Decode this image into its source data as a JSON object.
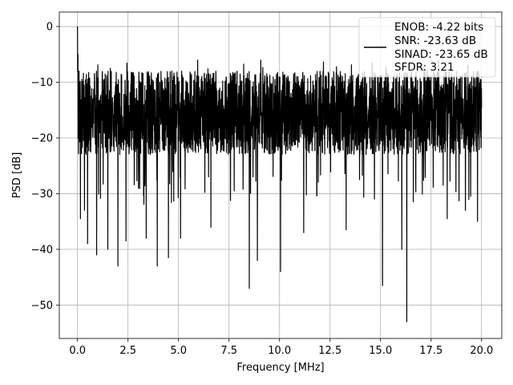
{
  "chart_data": {
    "type": "line",
    "title": "",
    "xlabel": "Frequency [MHz]",
    "ylabel": "PSD [dB]",
    "xlim": [
      -0.9,
      21.0
    ],
    "ylim": [
      -56.0,
      2.6
    ],
    "xticks": [
      0.0,
      2.5,
      5.0,
      7.5,
      10.0,
      12.5,
      15.0,
      17.5,
      20.0
    ],
    "xtick_labels": [
      "0.0",
      "2.5",
      "5.0",
      "7.5",
      "10.0",
      "12.5",
      "15.0",
      "17.5",
      "20.0"
    ],
    "yticks": [
      0,
      -10,
      -20,
      -30,
      -40,
      -50
    ],
    "ytick_labels": [
      "0",
      "−10",
      "−20",
      "−30",
      "−40",
      "−50"
    ],
    "grid": true,
    "legend_position": "top-right",
    "legend": [
      "ENOB: -4.22 bits",
      "SNR: -23.63 dB",
      "SINAD: -23.65 dB",
      "SFDR: 3.21"
    ],
    "series": [
      {
        "color": "#000000",
        "x_start": 0.0,
        "x_end": 20.0,
        "description_of_shape": "dense noise floor mostly between -25 and -8 dB, peak at 0 dB near 0 MHz, sparse deep dips",
        "peaks": [
          {
            "x": 0.0,
            "y": 0.0
          },
          {
            "x": 0.02,
            "y": -5.0
          },
          {
            "x": 0.08,
            "y": -8.0
          }
        ],
        "dips": [
          {
            "x": 0.15,
            "y": -34.5
          },
          {
            "x": 0.35,
            "y": -33.0
          },
          {
            "x": 0.5,
            "y": -39.0
          },
          {
            "x": 0.95,
            "y": -41.0
          },
          {
            "x": 1.5,
            "y": -40.0
          },
          {
            "x": 2.0,
            "y": -43.0
          },
          {
            "x": 2.4,
            "y": -38.5
          },
          {
            "x": 3.4,
            "y": -38.0
          },
          {
            "x": 3.95,
            "y": -43.0
          },
          {
            "x": 4.5,
            "y": -41.5
          },
          {
            "x": 8.5,
            "y": -47.0
          },
          {
            "x": 8.9,
            "y": -42.0
          },
          {
            "x": 10.05,
            "y": -44.0
          },
          {
            "x": 15.1,
            "y": -46.5
          },
          {
            "x": 16.3,
            "y": -53.0
          },
          {
            "x": 16.05,
            "y": -40.0
          },
          {
            "x": 5.1,
            "y": -38.0
          },
          {
            "x": 6.6,
            "y": -36.0
          },
          {
            "x": 11.2,
            "y": -37.0
          },
          {
            "x": 13.3,
            "y": -36.5
          },
          {
            "x": 18.3,
            "y": -34.5
          },
          {
            "x": 19.2,
            "y": -33.0
          },
          {
            "x": 19.8,
            "y": -35.0
          }
        ],
        "noise_upper": -8.0,
        "noise_lower": -25.0
      }
    ]
  }
}
